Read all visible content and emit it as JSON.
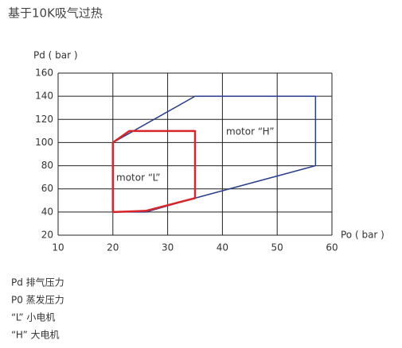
{
  "chart_data": {
    "type": "line",
    "title": "基于10K吸气过热",
    "y_label": "Pd ( bar )",
    "x_label": "Po ( bar )",
    "xlim": [
      10,
      60
    ],
    "xticks": [
      10,
      20,
      30,
      40,
      50,
      60
    ],
    "ylim": [
      20,
      160
    ],
    "yticks": [
      20,
      40,
      60,
      80,
      100,
      120,
      140,
      160
    ],
    "grid": true,
    "series": [
      {
        "name": "motor “H”",
        "color": "#2b3f8f",
        "x": [
          20,
          35,
          57,
          57,
          35,
          26,
          20,
          20
        ],
        "values": [
          100,
          140,
          140,
          80,
          52,
          40,
          40,
          100
        ]
      },
      {
        "name": "motor “L”",
        "color": "#d9262d",
        "x": [
          20,
          23,
          35,
          35,
          26,
          20,
          20
        ],
        "values": [
          100,
          110,
          110,
          52,
          41,
          40,
          100
        ]
      }
    ],
    "notes": [
      "Pd  排气压力",
      "P0  蒸发压力",
      "“L”  小电机",
      "“H”  大电机"
    ]
  }
}
